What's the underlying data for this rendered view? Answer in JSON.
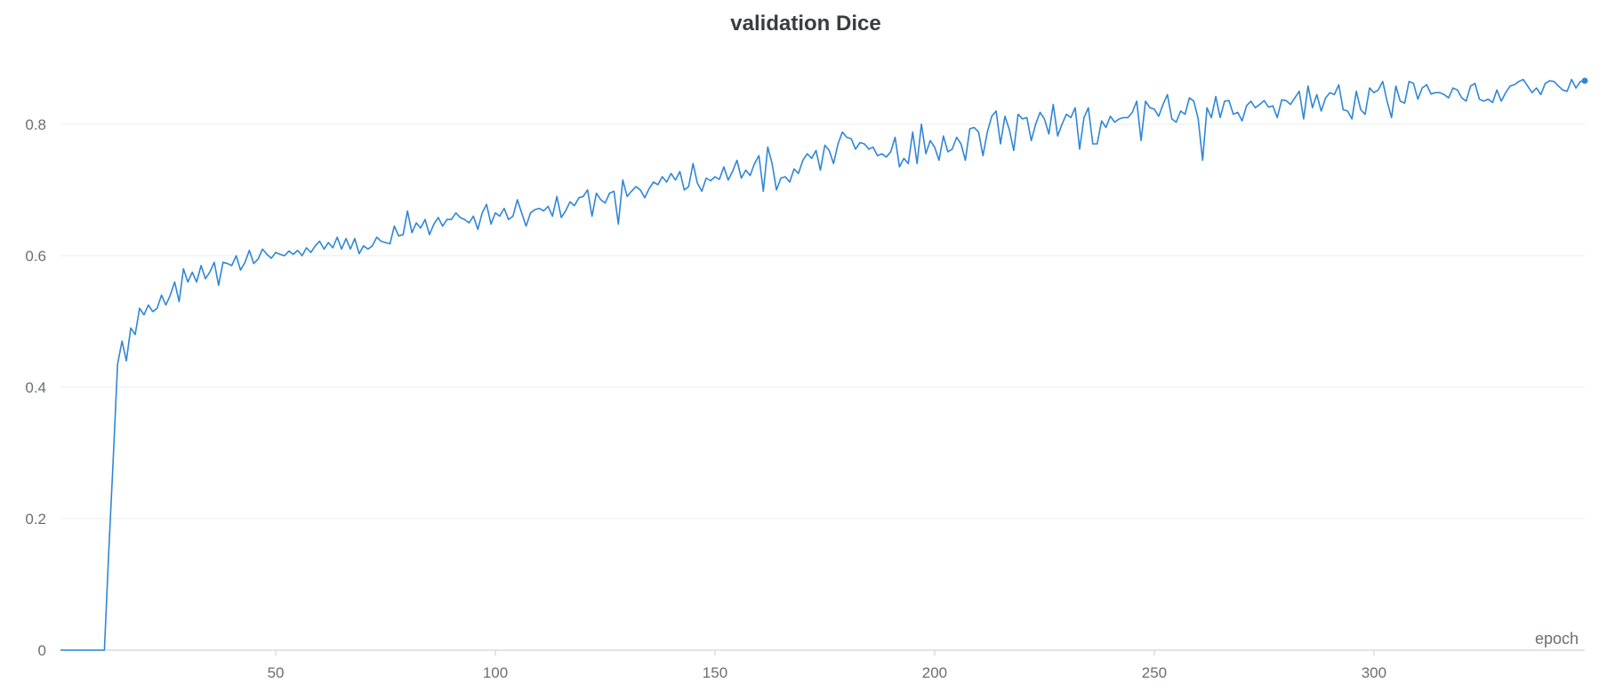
{
  "chart_data": {
    "type": "line",
    "title": "validation Dice",
    "xlabel": "epoch",
    "ylabel": "",
    "xlim": [
      1,
      348
    ],
    "ylim": [
      0,
      0.87
    ],
    "x_ticks": [
      50,
      100,
      150,
      200,
      250,
      300
    ],
    "y_ticks": [
      0,
      0.2,
      0.4,
      0.6,
      0.8
    ],
    "y_tick_labels": [
      "0",
      "0.2",
      "0.4",
      "0.6",
      "0.8"
    ],
    "grid": true,
    "legend": "none",
    "color": "#2f86d6",
    "series": [
      {
        "x_start": 1,
        "x_step": 1,
        "last_point_marker": true,
        "values": [
          0.0,
          0.0,
          0.0,
          0.0,
          0.0,
          0.0,
          0.0,
          0.0,
          0.0,
          0.0,
          0.0,
          0.15,
          0.29,
          0.435,
          0.47,
          0.44,
          0.49,
          0.48,
          0.52,
          0.51,
          0.525,
          0.515,
          0.52,
          0.54,
          0.525,
          0.54,
          0.56,
          0.53,
          0.58,
          0.56,
          0.575,
          0.56,
          0.585,
          0.565,
          0.575,
          0.59,
          0.555,
          0.59,
          0.588,
          0.585,
          0.6,
          0.578,
          0.59,
          0.608,
          0.588,
          0.595,
          0.61,
          0.602,
          0.596,
          0.605,
          0.602,
          0.6,
          0.607,
          0.602,
          0.608,
          0.6,
          0.612,
          0.605,
          0.615,
          0.622,
          0.61,
          0.62,
          0.612,
          0.628,
          0.61,
          0.626,
          0.61,
          0.626,
          0.603,
          0.615,
          0.61,
          0.615,
          0.628,
          0.622,
          0.62,
          0.618,
          0.645,
          0.63,
          0.632,
          0.668,
          0.635,
          0.65,
          0.642,
          0.655,
          0.632,
          0.648,
          0.658,
          0.645,
          0.655,
          0.655,
          0.665,
          0.658,
          0.655,
          0.65,
          0.66,
          0.64,
          0.665,
          0.678,
          0.648,
          0.665,
          0.66,
          0.672,
          0.655,
          0.66,
          0.685,
          0.665,
          0.645,
          0.665,
          0.67,
          0.672,
          0.668,
          0.675,
          0.66,
          0.69,
          0.658,
          0.668,
          0.682,
          0.676,
          0.688,
          0.69,
          0.7,
          0.66,
          0.695,
          0.685,
          0.68,
          0.695,
          0.698,
          0.648,
          0.715,
          0.69,
          0.698,
          0.705,
          0.7,
          0.688,
          0.702,
          0.712,
          0.708,
          0.72,
          0.712,
          0.725,
          0.715,
          0.728,
          0.7,
          0.705,
          0.74,
          0.71,
          0.698,
          0.718,
          0.714,
          0.72,
          0.716,
          0.735,
          0.715,
          0.728,
          0.745,
          0.718,
          0.73,
          0.722,
          0.74,
          0.752,
          0.698,
          0.765,
          0.74,
          0.7,
          0.718,
          0.72,
          0.712,
          0.732,
          0.725,
          0.745,
          0.755,
          0.748,
          0.76,
          0.73,
          0.768,
          0.76,
          0.74,
          0.77,
          0.788,
          0.78,
          0.778,
          0.762,
          0.772,
          0.77,
          0.762,
          0.765,
          0.752,
          0.755,
          0.75,
          0.758,
          0.78,
          0.735,
          0.748,
          0.74,
          0.788,
          0.74,
          0.8,
          0.755,
          0.775,
          0.765,
          0.745,
          0.782,
          0.758,
          0.762,
          0.78,
          0.77,
          0.745,
          0.793,
          0.795,
          0.788,
          0.752,
          0.788,
          0.812,
          0.82,
          0.77,
          0.812,
          0.792,
          0.76,
          0.815,
          0.808,
          0.81,
          0.775,
          0.8,
          0.818,
          0.808,
          0.785,
          0.83,
          0.782,
          0.8,
          0.815,
          0.81,
          0.825,
          0.762,
          0.81,
          0.825,
          0.77,
          0.77,
          0.805,
          0.795,
          0.812,
          0.803,
          0.808,
          0.81,
          0.81,
          0.818,
          0.835,
          0.775,
          0.835,
          0.825,
          0.823,
          0.812,
          0.83,
          0.845,
          0.808,
          0.803,
          0.82,
          0.815,
          0.84,
          0.835,
          0.808,
          0.745,
          0.825,
          0.81,
          0.842,
          0.81,
          0.835,
          0.836,
          0.815,
          0.818,
          0.805,
          0.828,
          0.835,
          0.825,
          0.83,
          0.836,
          0.826,
          0.828,
          0.81,
          0.837,
          0.836,
          0.83,
          0.84,
          0.85,
          0.808,
          0.858,
          0.825,
          0.845,
          0.82,
          0.84,
          0.848,
          0.845,
          0.86,
          0.822,
          0.82,
          0.808,
          0.85,
          0.822,
          0.815,
          0.855,
          0.848,
          0.852,
          0.865,
          0.835,
          0.81,
          0.858,
          0.835,
          0.832,
          0.865,
          0.862,
          0.838,
          0.855,
          0.86,
          0.846,
          0.848,
          0.848,
          0.845,
          0.84,
          0.855,
          0.852,
          0.84,
          0.835,
          0.858,
          0.862,
          0.838,
          0.835,
          0.838,
          0.833,
          0.852,
          0.835,
          0.848,
          0.858,
          0.86,
          0.865,
          0.868,
          0.858,
          0.848,
          0.855,
          0.845,
          0.862,
          0.866,
          0.865,
          0.858,
          0.852,
          0.85,
          0.868,
          0.855,
          0.865,
          0.866
        ]
      }
    ]
  }
}
